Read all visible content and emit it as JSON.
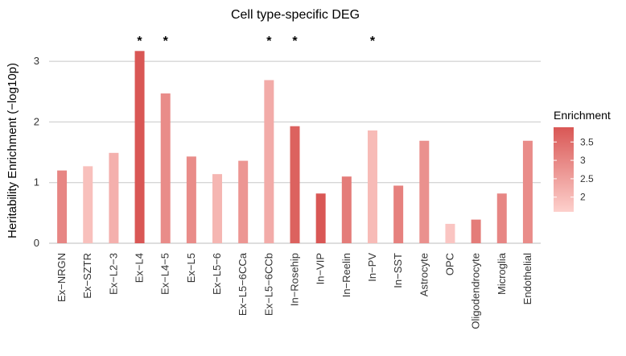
{
  "chart_data": {
    "type": "bar",
    "title": "Cell type-specific DEG",
    "xlabel": "",
    "ylabel": "Heritability Enrichment (−log10p)",
    "ylim": [
      0,
      3.4
    ],
    "yticks": [
      0,
      1,
      2,
      3
    ],
    "grid": "horizontal",
    "categories": [
      "Ex−NRGN",
      "Ex−SZTR",
      "Ex−L2−3",
      "Ex−L4",
      "Ex−L4−5",
      "Ex−L5",
      "Ex−L5−6",
      "Ex−L5−6CCa",
      "Ex−L5−6CCb",
      "In−Rosehip",
      "In−VIP",
      "In−Reelin",
      "In−PV",
      "In−SST",
      "Astrocyte",
      "OPC",
      "Oligodendrocyte",
      "Microglia",
      "Endothelial"
    ],
    "values": [
      1.2,
      1.27,
      1.49,
      3.17,
      2.47,
      1.43,
      1.14,
      1.36,
      2.69,
      1.93,
      0.82,
      1.1,
      1.86,
      0.95,
      1.69,
      0.32,
      0.39,
      0.82,
      1.69
    ],
    "enrichment": [
      3.0,
      1.9,
      2.2,
      3.9,
      2.9,
      2.9,
      2.1,
      2.7,
      2.3,
      3.7,
      3.9,
      3.2,
      2.0,
      3.1,
      2.8,
      1.8,
      3.2,
      3.0,
      2.9
    ],
    "significant": [
      false,
      false,
      false,
      true,
      true,
      false,
      false,
      false,
      true,
      true,
      false,
      false,
      true,
      false,
      false,
      false,
      false,
      false,
      false
    ],
    "significance_marker": "*",
    "legend": {
      "title": "Enrichment",
      "placement": "right",
      "range": [
        1.6,
        3.9
      ],
      "ticks": [
        2,
        2.5,
        3,
        3.5
      ],
      "tick_labels": [
        "2",
        "2.5",
        "3",
        "3.5"
      ],
      "color_low": "#fdd0cc",
      "color_high": "#d95755"
    },
    "colors": {
      "grid": "#c8c8c8",
      "axis": "#bdbdbd"
    }
  }
}
